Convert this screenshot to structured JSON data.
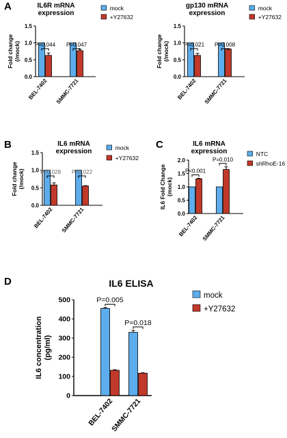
{
  "colors": {
    "mock": "#5dadec",
    "treat": "#c0392b",
    "axis": "#000000"
  },
  "chart_data": [
    {
      "panel": "A",
      "type": "bar",
      "title_lines": [
        "IL6R mRNA",
        "expression"
      ],
      "ylabel_lines": [
        "Fold change",
        "(/mock)"
      ],
      "categories": [
        "BEL-7402",
        "SMMC-7721"
      ],
      "series": [
        {
          "name": "mock",
          "values": [
            1.0,
            1.0
          ],
          "errors": [
            0.0,
            0.0
          ]
        },
        {
          "name": "+Y27632",
          "values": [
            0.63,
            0.77
          ],
          "errors": [
            0.07,
            0.04
          ]
        }
      ],
      "pvalues": [
        "P=0.044",
        "P=0.047"
      ],
      "ylim": [
        0,
        1.5
      ],
      "yticks": [
        "0.0",
        "0.5",
        "1.0",
        "1.5"
      ]
    },
    {
      "type": "bar",
      "title_lines": [
        "gp130 mRNA",
        "expression"
      ],
      "ylabel_lines": [
        "Fold change",
        "(/mock)"
      ],
      "categories": [
        "BEL-7402",
        "SMMC-7721"
      ],
      "series": [
        {
          "name": "mock",
          "values": [
            1.0,
            1.0
          ],
          "errors": [
            0.0,
            0.0
          ]
        },
        {
          "name": "+Y27632",
          "values": [
            0.63,
            0.82
          ],
          "errors": [
            0.06,
            0.01
          ]
        }
      ],
      "pvalues": [
        "P=0.021",
        "P=0.008"
      ],
      "ylim": [
        0,
        1.5
      ],
      "yticks": [
        "0.0",
        "0.5",
        "1.0",
        "1.5"
      ]
    },
    {
      "panel": "B",
      "type": "bar",
      "title_lines": [
        "IL6 mRNA",
        "expression"
      ],
      "ylabel_lines": [
        "Fold change",
        "(/mock)"
      ],
      "categories": [
        "BEL-7402",
        "SMMC-7721"
      ],
      "series": [
        {
          "name": "mock",
          "values": [
            1.0,
            1.0
          ],
          "errors": [
            0.0,
            0.0
          ]
        },
        {
          "name": "+Y27632",
          "values": [
            0.58,
            0.55
          ],
          "errors": [
            0.06,
            0.01
          ]
        }
      ],
      "pvalues": [
        "P=0.028",
        "P=0.022"
      ],
      "ylim": [
        0,
        1.5
      ],
      "yticks": [
        "0.0",
        "0.5",
        "1.0",
        "1.5"
      ]
    },
    {
      "panel": "C",
      "type": "bar",
      "title_lines": [
        "IL6 mRNA",
        "expression"
      ],
      "ylabel_lines": [
        "IL6 Fold Change",
        "(mock)"
      ],
      "categories": [
        "BEL-7402",
        "SMMC-7721"
      ],
      "series": [
        {
          "name": "NTC",
          "values": [
            1.0,
            1.0
          ],
          "errors": [
            0.0,
            0.0
          ]
        },
        {
          "name": "shRhoE-16",
          "values": [
            1.3,
            1.65
          ],
          "errors": [
            0.02,
            0.1
          ]
        }
      ],
      "pvalues": [
        "P<0.001",
        "P=0.010"
      ],
      "ylim": [
        0,
        2.0
      ],
      "yticks": [
        "0.0",
        "0.5",
        "1.0",
        "1.5",
        "2.0"
      ]
    },
    {
      "panel": "D",
      "type": "bar",
      "title_lines": [
        "IL6 ELISA"
      ],
      "ylabel_lines": [
        "IL6 concentration",
        "(pg/ml)"
      ],
      "categories": [
        "BEL-7402",
        "SMMC-7721"
      ],
      "series": [
        {
          "name": "mock",
          "values": [
            455,
            330
          ],
          "errors": [
            4,
            10
          ]
        },
        {
          "name": "+Y27632",
          "values": [
            132,
            117
          ],
          "errors": [
            3,
            2
          ]
        }
      ],
      "pvalues": [
        "P=0.005",
        "P=0.018"
      ],
      "ylim": [
        0,
        500
      ],
      "yticks": [
        "0",
        "100",
        "200",
        "300",
        "400",
        "500"
      ]
    }
  ]
}
